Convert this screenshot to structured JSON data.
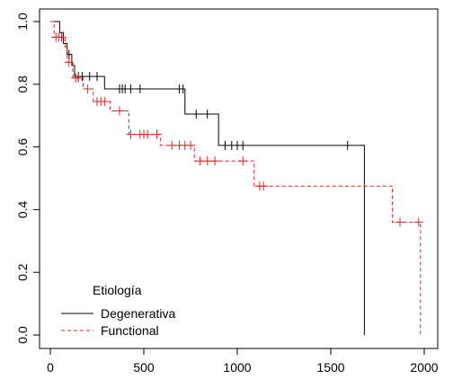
{
  "chart_data": {
    "type": "line",
    "title": "",
    "xlabel": "",
    "ylabel": "",
    "xlim": [
      0,
      2000
    ],
    "ylim": [
      0,
      1
    ],
    "x_ticks": [
      0,
      500,
      1000,
      1500,
      2000
    ],
    "y_ticks": [
      0.0,
      0.2,
      0.4,
      0.6,
      0.8,
      1.0
    ],
    "x_tick_labels": [
      "0",
      "500",
      "1000",
      "1500",
      "2000"
    ],
    "y_tick_labels": [
      "0.0",
      "0.2",
      "0.4",
      "0.6",
      "0.8",
      "1.0"
    ],
    "grid": false,
    "legend": {
      "title": "Etiología",
      "placement": "bottom-left",
      "entries": [
        "Degenerativa",
        "Functional"
      ]
    },
    "series": [
      {
        "name": "Degenerativa",
        "color": "#000000",
        "linestyle": "solid",
        "steps": [
          [
            0,
            1.0
          ],
          [
            50,
            1.0
          ],
          [
            50,
            0.965
          ],
          [
            70,
            0.965
          ],
          [
            70,
            0.93
          ],
          [
            90,
            0.93
          ],
          [
            90,
            0.895
          ],
          [
            115,
            0.895
          ],
          [
            115,
            0.86
          ],
          [
            130,
            0.86
          ],
          [
            130,
            0.825
          ],
          [
            290,
            0.825
          ],
          [
            290,
            0.785
          ],
          [
            720,
            0.785
          ],
          [
            720,
            0.705
          ],
          [
            900,
            0.705
          ],
          [
            900,
            0.605
          ],
          [
            1680,
            0.605
          ],
          [
            1680,
            0.0
          ]
        ],
        "censored": [
          [
            100,
            0.895
          ],
          [
            150,
            0.825
          ],
          [
            170,
            0.825
          ],
          [
            210,
            0.825
          ],
          [
            250,
            0.825
          ],
          [
            370,
            0.785
          ],
          [
            385,
            0.785
          ],
          [
            400,
            0.785
          ],
          [
            430,
            0.785
          ],
          [
            480,
            0.785
          ],
          [
            690,
            0.785
          ],
          [
            710,
            0.785
          ],
          [
            780,
            0.705
          ],
          [
            840,
            0.705
          ],
          [
            935,
            0.605
          ],
          [
            970,
            0.605
          ],
          [
            1000,
            0.605
          ],
          [
            1030,
            0.605
          ],
          [
            1590,
            0.605
          ]
        ]
      },
      {
        "name": "Functional",
        "color": "#d62728",
        "linestyle": "dashed",
        "steps": [
          [
            0,
            1.0
          ],
          [
            20,
            1.0
          ],
          [
            20,
            0.95
          ],
          [
            80,
            0.95
          ],
          [
            80,
            0.915
          ],
          [
            90,
            0.915
          ],
          [
            90,
            0.87
          ],
          [
            120,
            0.87
          ],
          [
            120,
            0.82
          ],
          [
            175,
            0.82
          ],
          [
            175,
            0.785
          ],
          [
            230,
            0.785
          ],
          [
            230,
            0.745
          ],
          [
            320,
            0.745
          ],
          [
            320,
            0.715
          ],
          [
            420,
            0.715
          ],
          [
            420,
            0.64
          ],
          [
            590,
            0.64
          ],
          [
            590,
            0.605
          ],
          [
            770,
            0.605
          ],
          [
            770,
            0.555
          ],
          [
            1090,
            0.555
          ],
          [
            1090,
            0.475
          ],
          [
            1830,
            0.475
          ],
          [
            1830,
            0.36
          ],
          [
            1980,
            0.36
          ],
          [
            1980,
            0.0
          ]
        ],
        "censored": [
          [
            30,
            0.95
          ],
          [
            45,
            0.95
          ],
          [
            60,
            0.95
          ],
          [
            100,
            0.87
          ],
          [
            135,
            0.82
          ],
          [
            150,
            0.82
          ],
          [
            200,
            0.785
          ],
          [
            250,
            0.745
          ],
          [
            270,
            0.745
          ],
          [
            290,
            0.745
          ],
          [
            370,
            0.715
          ],
          [
            430,
            0.64
          ],
          [
            480,
            0.64
          ],
          [
            500,
            0.64
          ],
          [
            520,
            0.64
          ],
          [
            570,
            0.64
          ],
          [
            650,
            0.605
          ],
          [
            690,
            0.605
          ],
          [
            720,
            0.605
          ],
          [
            750,
            0.605
          ],
          [
            800,
            0.555
          ],
          [
            840,
            0.555
          ],
          [
            880,
            0.555
          ],
          [
            1030,
            0.555
          ],
          [
            1120,
            0.475
          ],
          [
            1140,
            0.475
          ],
          [
            1870,
            0.36
          ],
          [
            1970,
            0.36
          ]
        ]
      }
    ]
  }
}
